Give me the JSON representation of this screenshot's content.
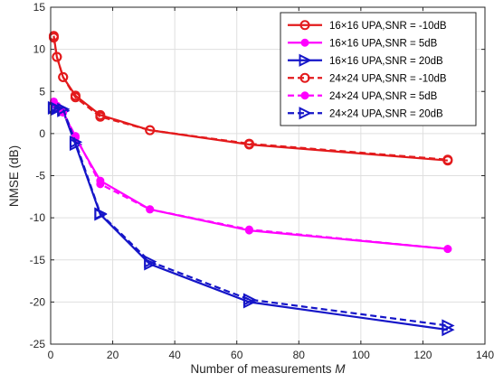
{
  "chart_data": {
    "type": "line",
    "xlabel": "Number of measurements",
    "xlabel_var": "M",
    "ylabel": "NMSE (dB)",
    "xlim": [
      0,
      140
    ],
    "ylim": [
      -25,
      15
    ],
    "xticks": [
      0,
      20,
      40,
      60,
      80,
      100,
      120,
      140
    ],
    "yticks": [
      -25,
      -20,
      -15,
      -10,
      -5,
      0,
      5,
      10,
      15
    ],
    "xtick_labels": [
      "0",
      "20",
      "40",
      "60",
      "80",
      "100",
      "120",
      "140"
    ],
    "ytick_labels": [
      "-25",
      "-20",
      "-15",
      "-10",
      "-5",
      "0",
      "5",
      "10",
      "15"
    ],
    "grid": true,
    "legend_position": "top-right",
    "x": [
      1,
      2,
      4,
      8,
      16,
      32,
      64,
      128
    ],
    "series": [
      {
        "name": "16×16 UPA,SNR = -10dB",
        "color": "#e31a1c",
        "dash": "solid",
        "marker": "circle-open",
        "values": [
          11.6,
          9.1,
          6.7,
          4.5,
          2.2,
          0.4,
          -1.3,
          -3.2
        ]
      },
      {
        "name": "16×16 UPA,SNR = 5dB",
        "color": "#ff00ff",
        "dash": "solid",
        "marker": "circle-filled",
        "values": [
          3.8,
          3.3,
          2.6,
          -0.5,
          -5.6,
          -9.0,
          -11.5,
          -13.7
        ]
      },
      {
        "name": "16×16 UPA,SNR = 20dB",
        "color": "#1515c8",
        "dash": "solid",
        "marker": "triangle-right",
        "values": [
          3.0,
          2.9,
          2.7,
          -1.3,
          -9.6,
          -15.5,
          -20.0,
          -23.3
        ]
      },
      {
        "name": "24×24 UPA,SNR = -10dB",
        "color": "#e31a1c",
        "dash": "dashed",
        "marker": "circle-open",
        "values": [
          11.4,
          9.1,
          6.7,
          4.3,
          2.0,
          0.4,
          -1.2,
          -3.1
        ]
      },
      {
        "name": "24×24 UPA,SNR = 5dB",
        "color": "#ff00ff",
        "dash": "dashed",
        "marker": "circle-filled",
        "values": [
          3.7,
          3.2,
          2.5,
          -0.3,
          -6.0,
          -9.0,
          -11.4,
          -13.7
        ]
      },
      {
        "name": "24×24 UPA,SNR = 20dB",
        "color": "#1515c8",
        "dash": "dashed",
        "marker": "triangle-right",
        "values": [
          3.1,
          3.0,
          2.9,
          -1.0,
          -9.5,
          -15.2,
          -19.7,
          -22.8
        ]
      }
    ]
  }
}
